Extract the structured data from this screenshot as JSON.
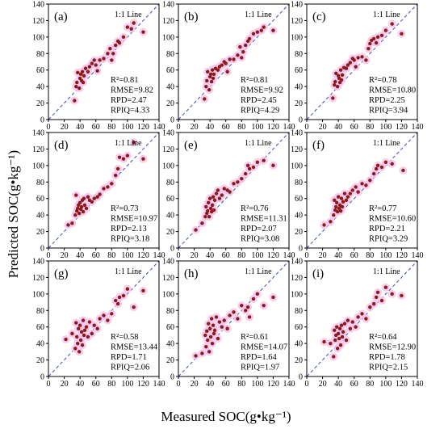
{
  "figure": {
    "xlabel": "Measured SOC(g•kg⁻¹)",
    "ylabel": "Predicted SOC(g•kg⁻¹)",
    "line_label": "1:1 Line"
  },
  "colors": {
    "point": "#8b1a1a",
    "halo": "#f6c6ec",
    "line": "#3b4bc8",
    "frame": "#000000"
  },
  "chart_data": [
    {
      "type": "scatter",
      "label": "(a)",
      "xlim": [
        0,
        140
      ],
      "ylim": [
        0,
        140
      ],
      "ticks": [
        0,
        20,
        40,
        60,
        80,
        100,
        120,
        140
      ],
      "stats": [
        "R²=0.81",
        "RMSE=9.82",
        "RPD=2.47",
        "RPIQ=4.33"
      ],
      "points": [
        [
          33,
          23
        ],
        [
          35,
          40
        ],
        [
          36,
          45
        ],
        [
          37,
          57
        ],
        [
          39,
          38
        ],
        [
          40,
          50
        ],
        [
          41,
          55
        ],
        [
          42,
          47
        ],
        [
          43,
          58
        ],
        [
          44,
          45
        ],
        [
          45,
          53
        ],
        [
          47,
          62
        ],
        [
          50,
          58
        ],
        [
          52,
          64
        ],
        [
          55,
          68
        ],
        [
          58,
          72
        ],
        [
          60,
          66
        ],
        [
          62,
          59
        ],
        [
          65,
          72
        ],
        [
          70,
          74
        ],
        [
          75,
          80
        ],
        [
          78,
          86
        ],
        [
          80,
          72
        ],
        [
          82,
          80
        ],
        [
          85,
          90
        ],
        [
          88,
          95
        ],
        [
          90,
          93
        ],
        [
          95,
          100
        ],
        [
          100,
          112
        ],
        [
          105,
          110
        ],
        [
          108,
          117
        ],
        [
          120,
          106
        ]
      ]
    },
    {
      "type": "scatter",
      "label": "(b)",
      "xlim": [
        0,
        140
      ],
      "ylim": [
        0,
        140
      ],
      "ticks": [
        0,
        20,
        40,
        60,
        80,
        100,
        120,
        140
      ],
      "stats": [
        "R²=0.81",
        "RMSE=9.92",
        "RPD=2.45",
        "RPIQ=4.29"
      ],
      "points": [
        [
          33,
          25
        ],
        [
          35,
          40
        ],
        [
          36,
          47
        ],
        [
          37,
          58
        ],
        [
          39,
          36
        ],
        [
          40,
          52
        ],
        [
          41,
          55
        ],
        [
          42,
          46
        ],
        [
          43,
          60
        ],
        [
          44,
          50
        ],
        [
          45,
          55
        ],
        [
          47,
          62
        ],
        [
          50,
          60
        ],
        [
          52,
          64
        ],
        [
          55,
          66
        ],
        [
          58,
          70
        ],
        [
          60,
          68
        ],
        [
          62,
          58
        ],
        [
          65,
          73
        ],
        [
          70,
          73
        ],
        [
          75,
          78
        ],
        [
          78,
          88
        ],
        [
          80,
          75
        ],
        [
          82,
          82
        ],
        [
          85,
          90
        ],
        [
          88,
          95
        ],
        [
          90,
          98
        ],
        [
          95,
          104
        ],
        [
          100,
          106
        ],
        [
          105,
          108
        ],
        [
          108,
          112
        ],
        [
          120,
          108
        ]
      ]
    },
    {
      "type": "scatter",
      "label": "(c)",
      "xlim": [
        0,
        140
      ],
      "ylim": [
        0,
        140
      ],
      "ticks": [
        0,
        20,
        40,
        60,
        80,
        100,
        120,
        140
      ],
      "stats": [
        "R²=0.78",
        "RMSE=10.80",
        "RPD=2.25",
        "RPIQ=3.94"
      ],
      "points": [
        [
          33,
          26
        ],
        [
          35,
          42
        ],
        [
          36,
          46
        ],
        [
          37,
          56
        ],
        [
          39,
          40
        ],
        [
          40,
          53
        ],
        [
          41,
          50
        ],
        [
          42,
          45
        ],
        [
          43,
          60
        ],
        [
          44,
          48
        ],
        [
          45,
          54
        ],
        [
          47,
          63
        ],
        [
          50,
          62
        ],
        [
          52,
          66
        ],
        [
          55,
          69
        ],
        [
          58,
          74
        ],
        [
          60,
          72
        ],
        [
          62,
          64
        ],
        [
          65,
          75
        ],
        [
          70,
          76
        ],
        [
          75,
          72
        ],
        [
          78,
          86
        ],
        [
          80,
          92
        ],
        [
          82,
          96
        ],
        [
          85,
          98
        ],
        [
          88,
          93
        ],
        [
          90,
          100
        ],
        [
          95,
          102
        ],
        [
          100,
          108
        ],
        [
          108,
          116
        ],
        [
          120,
          104
        ]
      ]
    },
    {
      "type": "scatter",
      "label": "(d)",
      "xlim": [
        0,
        140
      ],
      "ylim": [
        0,
        140
      ],
      "ticks": [
        0,
        20,
        40,
        60,
        80,
        100,
        120,
        140
      ],
      "stats": [
        "R²=0.73",
        "RMSE=10.97",
        "RPD=2.13",
        "RPIQ=3.18"
      ],
      "points": [
        [
          25,
          28
        ],
        [
          30,
          30
        ],
        [
          34,
          40
        ],
        [
          35,
          64
        ],
        [
          36,
          45
        ],
        [
          37,
          48
        ],
        [
          38,
          52
        ],
        [
          39,
          42
        ],
        [
          40,
          55
        ],
        [
          41,
          47
        ],
        [
          42,
          50
        ],
        [
          43,
          58
        ],
        [
          44,
          44
        ],
        [
          45,
          60
        ],
        [
          46,
          52
        ],
        [
          48,
          48
        ],
        [
          50,
          62
        ],
        [
          52,
          58
        ],
        [
          55,
          56
        ],
        [
          58,
          60
        ],
        [
          62,
          62
        ],
        [
          65,
          65
        ],
        [
          70,
          72
        ],
        [
          75,
          74
        ],
        [
          80,
          78
        ],
        [
          85,
          88
        ],
        [
          88,
          96
        ],
        [
          90,
          110
        ],
        [
          95,
          108
        ],
        [
          100,
          112
        ],
        [
          108,
          128
        ],
        [
          120,
          108
        ]
      ]
    },
    {
      "type": "scatter",
      "label": "(e)",
      "xlim": [
        0,
        140
      ],
      "ylim": [
        0,
        140
      ],
      "ticks": [
        0,
        20,
        40,
        60,
        80,
        100,
        120,
        140
      ],
      "stats": [
        "R²=0.76",
        "RMSE=11.31",
        "RPD=2.07",
        "RPIQ=3.08"
      ],
      "points": [
        [
          22,
          22
        ],
        [
          30,
          30
        ],
        [
          34,
          38
        ],
        [
          35,
          50
        ],
        [
          36,
          42
        ],
        [
          37,
          45
        ],
        [
          38,
          55
        ],
        [
          39,
          38
        ],
        [
          40,
          60
        ],
        [
          41,
          48
        ],
        [
          42,
          44
        ],
        [
          43,
          52
        ],
        [
          44,
          62
        ],
        [
          45,
          46
        ],
        [
          46,
          58
        ],
        [
          48,
          66
        ],
        [
          50,
          70
        ],
        [
          52,
          60
        ],
        [
          55,
          64
        ],
        [
          58,
          72
        ],
        [
          62,
          70
        ],
        [
          65,
          68
        ],
        [
          70,
          78
        ],
        [
          75,
          80
        ],
        [
          80,
          84
        ],
        [
          85,
          90
        ],
        [
          88,
          100
        ],
        [
          90,
          96
        ],
        [
          95,
          98
        ],
        [
          100,
          104
        ],
        [
          108,
          106
        ],
        [
          120,
          100
        ]
      ]
    },
    {
      "type": "scatter",
      "label": "(f)",
      "xlim": [
        0,
        140
      ],
      "ylim": [
        0,
        140
      ],
      "ticks": [
        0,
        20,
        40,
        60,
        80,
        100,
        120,
        140
      ],
      "stats": [
        "R²=0.77",
        "RMSE=10.60",
        "RPD=2.21",
        "RPIQ=3.29"
      ],
      "points": [
        [
          22,
          28
        ],
        [
          30,
          32
        ],
        [
          34,
          40
        ],
        [
          35,
          58
        ],
        [
          36,
          46
        ],
        [
          37,
          50
        ],
        [
          38,
          55
        ],
        [
          39,
          44
        ],
        [
          40,
          62
        ],
        [
          41,
          48
        ],
        [
          42,
          52
        ],
        [
          43,
          45
        ],
        [
          44,
          60
        ],
        [
          45,
          50
        ],
        [
          46,
          56
        ],
        [
          48,
          66
        ],
        [
          50,
          58
        ],
        [
          52,
          62
        ],
        [
          55,
          66
        ],
        [
          58,
          70
        ],
        [
          62,
          74
        ],
        [
          65,
          68
        ],
        [
          70,
          78
        ],
        [
          75,
          76
        ],
        [
          80,
          82
        ],
        [
          85,
          90
        ],
        [
          88,
          96
        ],
        [
          90,
          100
        ],
        [
          95,
          98
        ],
        [
          100,
          104
        ],
        [
          108,
          102
        ],
        [
          122,
          94
        ]
      ]
    },
    {
      "type": "scatter",
      "label": "(g)",
      "xlim": [
        0,
        140
      ],
      "ylim": [
        0,
        140
      ],
      "ticks": [
        0,
        20,
        40,
        60,
        80,
        100,
        120,
        140
      ],
      "stats": [
        "R²=0.58",
        "RMSE=13.44",
        "RPD=1.71",
        "RPIQ=2.06"
      ],
      "points": [
        [
          22,
          45
        ],
        [
          30,
          52
        ],
        [
          34,
          34
        ],
        [
          35,
          65
        ],
        [
          36,
          48
        ],
        [
          37,
          40
        ],
        [
          38,
          58
        ],
        [
          39,
          30
        ],
        [
          40,
          62
        ],
        [
          41,
          44
        ],
        [
          42,
          54
        ],
        [
          43,
          38
        ],
        [
          44,
          68
        ],
        [
          45,
          50
        ],
        [
          46,
          56
        ],
        [
          48,
          60
        ],
        [
          50,
          48
        ],
        [
          52,
          66
        ],
        [
          55,
          52
        ],
        [
          58,
          62
        ],
        [
          62,
          58
        ],
        [
          65,
          70
        ],
        [
          70,
          74
        ],
        [
          75,
          68
        ],
        [
          80,
          76
        ],
        [
          85,
          92
        ],
        [
          88,
          88
        ],
        [
          90,
          96
        ],
        [
          95,
          98
        ],
        [
          100,
          106
        ],
        [
          108,
          84
        ],
        [
          120,
          104
        ]
      ]
    },
    {
      "type": "scatter",
      "label": "(h)",
      "xlim": [
        0,
        140
      ],
      "ylim": [
        0,
        140
      ],
      "ticks": [
        0,
        20,
        40,
        60,
        80,
        100,
        120,
        140
      ],
      "stats": [
        "R²=0.61",
        "RMSE=14.07",
        "RPD=1.64",
        "RPIQ=1.97"
      ],
      "points": [
        [
          22,
          25
        ],
        [
          30,
          28
        ],
        [
          34,
          50
        ],
        [
          35,
          36
        ],
        [
          36,
          55
        ],
        [
          37,
          44
        ],
        [
          38,
          64
        ],
        [
          39,
          30
        ],
        [
          40,
          58
        ],
        [
          41,
          48
        ],
        [
          42,
          70
        ],
        [
          43,
          40
        ],
        [
          44,
          62
        ],
        [
          45,
          52
        ],
        [
          46,
          56
        ],
        [
          48,
          72
        ],
        [
          50,
          46
        ],
        [
          52,
          66
        ],
        [
          55,
          60
        ],
        [
          58,
          68
        ],
        [
          62,
          58
        ],
        [
          65,
          74
        ],
        [
          70,
          78
        ],
        [
          75,
          70
        ],
        [
          80,
          86
        ],
        [
          85,
          80
        ],
        [
          88,
          84
        ],
        [
          90,
          72
        ],
        [
          95,
          94
        ],
        [
          100,
          100
        ],
        [
          108,
          86
        ],
        [
          120,
          96
        ]
      ]
    },
    {
      "type": "scatter",
      "label": "(i)",
      "xlim": [
        0,
        140
      ],
      "ylim": [
        0,
        140
      ],
      "ticks": [
        0,
        20,
        40,
        60,
        80,
        100,
        120,
        140
      ],
      "stats": [
        "R²=0.64",
        "RMSE=12.90",
        "RPD=1.78",
        "RPIQ=2.15"
      ],
      "points": [
        [
          22,
          42
        ],
        [
          30,
          40
        ],
        [
          34,
          24
        ],
        [
          35,
          56
        ],
        [
          36,
          44
        ],
        [
          37,
          50
        ],
        [
          38,
          60
        ],
        [
          39,
          34
        ],
        [
          40,
          52
        ],
        [
          41,
          46
        ],
        [
          42,
          58
        ],
        [
          43,
          38
        ],
        [
          44,
          62
        ],
        [
          45,
          48
        ],
        [
          46,
          54
        ],
        [
          48,
          64
        ],
        [
          50,
          44
        ],
        [
          52,
          68
        ],
        [
          55,
          58
        ],
        [
          58,
          66
        ],
        [
          62,
          60
        ],
        [
          65,
          72
        ],
        [
          70,
          76
        ],
        [
          75,
          70
        ],
        [
          80,
          84
        ],
        [
          85,
          88
        ],
        [
          88,
          96
        ],
        [
          90,
          102
        ],
        [
          95,
          92
        ],
        [
          100,
          108
        ],
        [
          108,
          100
        ],
        [
          120,
          98
        ]
      ]
    }
  ]
}
